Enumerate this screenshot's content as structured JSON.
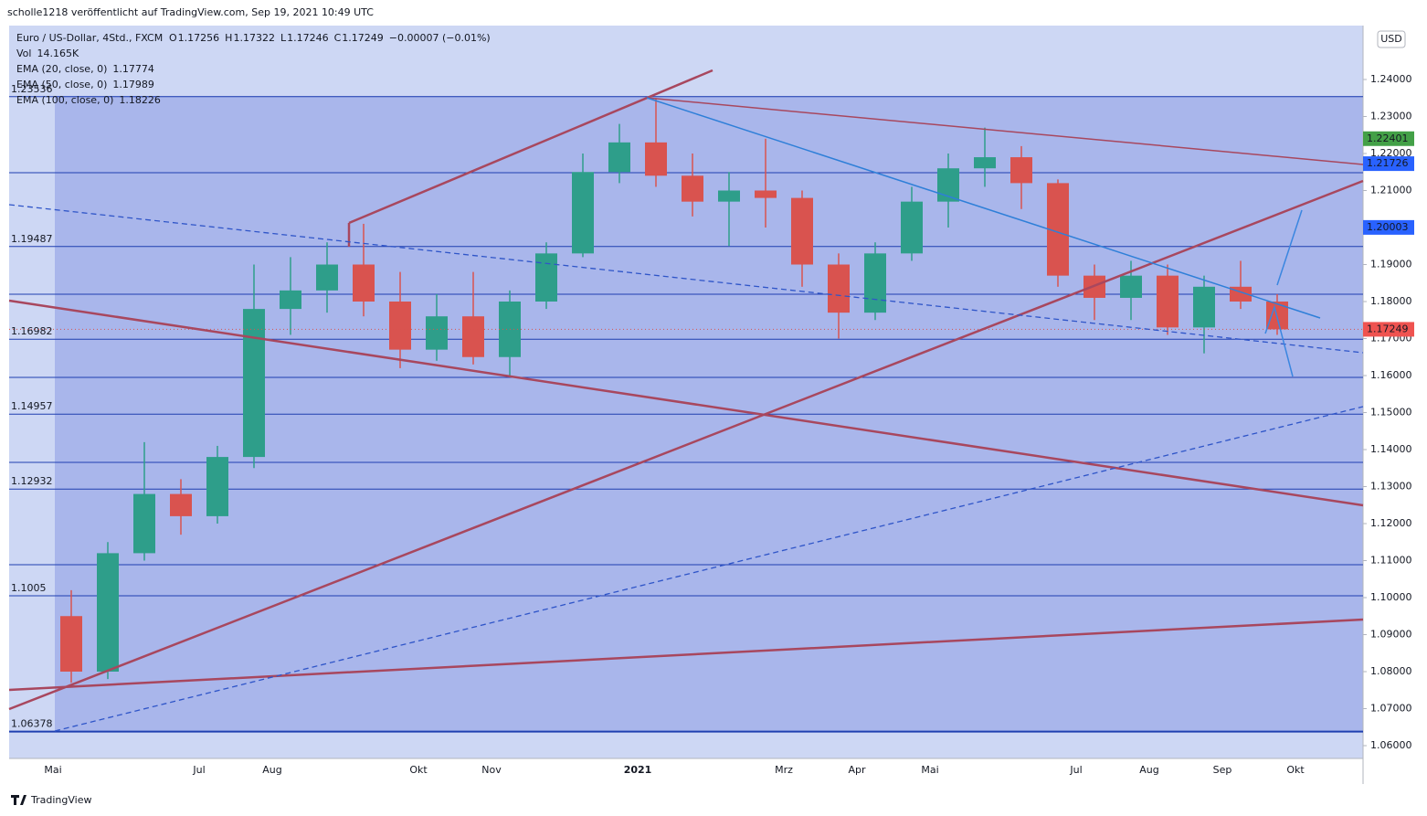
{
  "chart_data": {
    "type": "candlestick",
    "publisher": "scholle1218 veröffentlicht auf TradingView.com, Sep 19, 2021 10:49 UTC",
    "title": "Euro / US-Dollar, 4Std., FXCM",
    "quote": [
      {
        "label": "O",
        "value": "1.17256"
      },
      {
        "label": "H",
        "value": "1.17322"
      },
      {
        "label": "L",
        "value": "1.17246"
      },
      {
        "label": "C",
        "value": "1.17249"
      }
    ],
    "change": "−0.00007 (−0.01%)",
    "indicators": [
      {
        "name": "Vol",
        "value": "14.165K",
        "color": "#e53935"
      },
      {
        "name": "EMA (20, close, 0)",
        "value": "1.17774",
        "color": "#1e88e5"
      },
      {
        "name": "EMA (50, close, 0)",
        "value": "1.17989",
        "color": "#00acc1"
      },
      {
        "name": "EMA (100, close, 0)",
        "value": "1.18226",
        "color": "#c9a96a"
      }
    ],
    "currency": "USD",
    "brand": "TradingView",
    "categories": [
      "Mai",
      null,
      null,
      null,
      "Jul",
      null,
      "Aug",
      null,
      null,
      null,
      "Okt",
      null,
      "Nov",
      null,
      null,
      null,
      "2021",
      null,
      null,
      null,
      "Mrz",
      null,
      "Apr",
      null,
      "Mai",
      null,
      null,
      null,
      "Jul",
      null,
      "Aug",
      null,
      "Sep",
      null,
      "Okt"
    ],
    "open": [
      1.095,
      1.08,
      1.112,
      1.128,
      1.122,
      1.138,
      1.178,
      1.183,
      1.19,
      1.18,
      1.167,
      1.176,
      1.165,
      1.18,
      1.193,
      1.215,
      1.223,
      1.214,
      1.207,
      1.21,
      1.208,
      1.19,
      1.177,
      1.193,
      1.207,
      1.216,
      1.219,
      1.212,
      1.187,
      1.181,
      1.187,
      1.173,
      1.184,
      1.18,
      null
    ],
    "high": [
      1.102,
      1.115,
      1.142,
      1.132,
      1.141,
      1.19,
      1.192,
      1.196,
      1.201,
      1.188,
      1.182,
      1.188,
      1.183,
      1.196,
      1.22,
      1.228,
      1.235,
      1.22,
      1.215,
      1.224,
      1.21,
      1.193,
      1.196,
      1.211,
      1.22,
      1.227,
      1.222,
      1.213,
      1.19,
      1.191,
      1.19,
      1.187,
      1.191,
      1.182,
      null
    ],
    "low": [
      1.077,
      1.078,
      1.11,
      1.117,
      1.12,
      1.135,
      1.171,
      1.177,
      1.176,
      1.162,
      1.164,
      1.163,
      1.16,
      1.178,
      1.192,
      1.212,
      1.211,
      1.203,
      1.195,
      1.2,
      1.184,
      1.17,
      1.175,
      1.191,
      1.2,
      1.211,
      1.205,
      1.184,
      1.175,
      1.175,
      1.171,
      1.166,
      1.178,
      1.171,
      null
    ],
    "close": [
      1.08,
      1.112,
      1.128,
      1.122,
      1.138,
      1.178,
      1.183,
      1.19,
      1.18,
      1.167,
      1.176,
      1.165,
      1.18,
      1.193,
      1.215,
      1.223,
      1.214,
      1.207,
      1.21,
      1.208,
      1.19,
      1.177,
      1.193,
      1.207,
      1.216,
      1.219,
      1.212,
      1.187,
      1.181,
      1.187,
      1.173,
      1.184,
      1.18,
      1.17249,
      null
    ],
    "up_color": "#2e9e8a",
    "down_color": "#d9534f",
    "ylim": [
      1.05654,
      1.25457
    ],
    "yticks": [
      {
        "value": 1.06,
        "label": "1.06000"
      },
      {
        "value": 1.07,
        "label": "1.07000"
      },
      {
        "value": 1.08,
        "label": "1.08000"
      },
      {
        "value": 1.09,
        "label": "1.09000"
      },
      {
        "value": 1.1,
        "label": "1.10000"
      },
      {
        "value": 1.11,
        "label": "1.11000"
      },
      {
        "value": 1.12,
        "label": "1.12000"
      },
      {
        "value": 1.13,
        "label": "1.13000"
      },
      {
        "value": 1.14,
        "label": "1.14000"
      },
      {
        "value": 1.15,
        "label": "1.15000"
      },
      {
        "value": 1.16,
        "label": "1.16000"
      },
      {
        "value": 1.17,
        "label": "1.17000"
      },
      {
        "value": 1.18,
        "label": "1.18000"
      },
      {
        "value": 1.19,
        "label": "1.19000"
      },
      {
        "value": 1.2,
        "label": "1.20000"
      },
      {
        "value": 1.21,
        "label": "1.21000"
      },
      {
        "value": 1.22,
        "label": "1.22000"
      },
      {
        "value": 1.23,
        "label": "1.23000"
      },
      {
        "value": 1.24,
        "label": "1.24000"
      }
    ],
    "levels": [
      1.23536,
      1.19487,
      1.16982,
      1.14957,
      1.12932,
      1.1005,
      1.06378
    ],
    "price_badges": [
      {
        "value": 1.22401,
        "color": "#43a047"
      },
      {
        "value": 1.21726,
        "color": "#2962ff"
      },
      {
        "value": 1.20003,
        "color": "#2962ff"
      },
      {
        "value": 1.17249,
        "color": "#ef5350"
      }
    ]
  }
}
